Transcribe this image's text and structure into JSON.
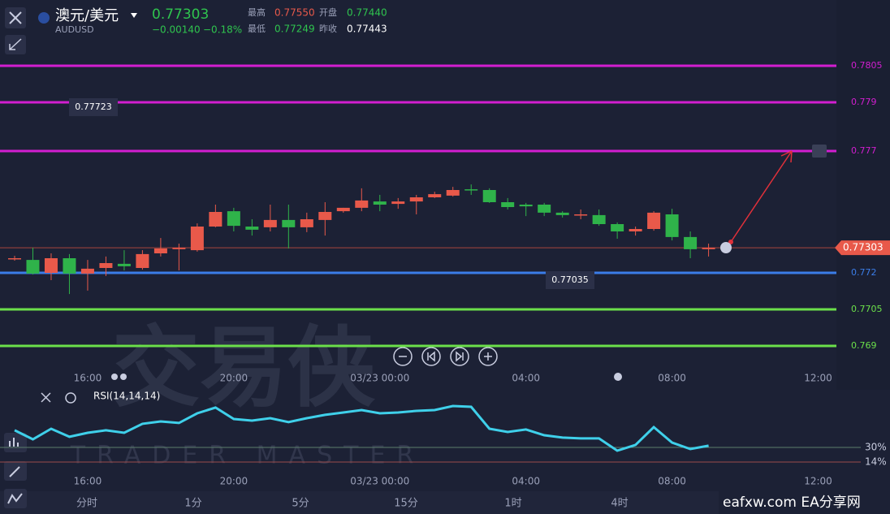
{
  "header": {
    "symbol_name": "澳元/美元",
    "symbol_code": "AUDUSD",
    "price": 0.77303,
    "change": -0.0014,
    "change_label": "−0.00140",
    "change_pct": "−0.18%",
    "stats": [
      {
        "label": "最高",
        "value": 0.7755,
        "value_label": "0.77550"
      },
      {
        "label": "开盘",
        "value": 0.7744,
        "value_label": "0.77440"
      },
      {
        "label": "最低",
        "value": 0.77249
      },
      {
        "label": "昨收",
        "value": 0.77443
      }
    ]
  },
  "chart_data": [
    {
      "type": "candlestick",
      "open": [
        0.7726,
        0.77253,
        0.772,
        0.7726,
        0.77197,
        0.7722,
        0.77237,
        0.7722,
        0.7728,
        0.77297,
        0.77293,
        0.7739,
        0.77453,
        0.7739,
        0.77387,
        0.77417,
        0.77387,
        0.77417,
        0.77453,
        0.77467,
        0.77493,
        0.77483,
        0.77493,
        0.7751,
        0.77517,
        0.77543,
        0.7754,
        0.7749,
        0.7748,
        0.7748,
        0.77447,
        0.77437,
        0.77437,
        0.774,
        0.7737,
        0.7738,
        0.7744,
        0.77347,
        0.77297
      ],
      "high": [
        0.7727,
        0.77303,
        0.7728,
        0.77277,
        0.77253,
        0.77267,
        0.77293,
        0.77293,
        0.77343,
        0.7732,
        0.77403,
        0.7748,
        0.77467,
        0.7742,
        0.7748,
        0.7748,
        0.77447,
        0.7749,
        0.77467,
        0.77547,
        0.7752,
        0.77507,
        0.7752,
        0.77533,
        0.77553,
        0.77563,
        0.77547,
        0.77507,
        0.77487,
        0.77487,
        0.77453,
        0.7746,
        0.7746,
        0.77407,
        0.7739,
        0.77453,
        0.77463,
        0.7737,
        0.7732
      ],
      "low": [
        0.7725,
        0.77193,
        0.7717,
        0.77113,
        0.77127,
        0.77187,
        0.7721,
        0.77213,
        0.77267,
        0.7721,
        0.77287,
        0.77387,
        0.7737,
        0.77353,
        0.7737,
        0.773,
        0.77367,
        0.77353,
        0.77447,
        0.77453,
        0.77453,
        0.77463,
        0.7744,
        0.77507,
        0.77513,
        0.7752,
        0.77487,
        0.7746,
        0.77433,
        0.77433,
        0.77427,
        0.7742,
        0.77393,
        0.7734,
        0.77353,
        0.77373,
        0.77333,
        0.7726,
        0.77267
      ],
      "close": [
        0.7726,
        0.77197,
        0.7726,
        0.77197,
        0.77217,
        0.7724,
        0.77227,
        0.77277,
        0.773,
        0.77303,
        0.7739,
        0.7745,
        0.77393,
        0.77377,
        0.77417,
        0.77387,
        0.7742,
        0.7745,
        0.77467,
        0.77497,
        0.7748,
        0.77493,
        0.7751,
        0.77523,
        0.7754,
        0.7754,
        0.7749,
        0.7747,
        0.77473,
        0.77447,
        0.77437,
        0.7744,
        0.774,
        0.7737,
        0.7738,
        0.77447,
        0.77347,
        0.77297,
        0.77303
      ],
      "up_color": "#e8594a",
      "down_color": "#2fb34a",
      "xlim": [
        -0.8,
        45
      ],
      "xticks": [
        {
          "value": 4,
          "label": "16:00"
        },
        {
          "value": 12,
          "label": "20:00"
        },
        {
          "value": 20,
          "label": "03/23 00:00"
        },
        {
          "value": 28,
          "label": "04:00"
        },
        {
          "value": 36,
          "label": "08:00"
        },
        {
          "value": 44,
          "label": "12:00"
        }
      ],
      "ylim": [
        0.7672,
        0.7832
      ],
      "levels": [
        {
          "value": 0.7805,
          "color": "#d21ed0"
        },
        {
          "value": 0.779,
          "color": "#d21ed0"
        },
        {
          "value": 0.777,
          "color": "#d21ed0"
        },
        {
          "value": 0.772,
          "color": "#3b7de8"
        },
        {
          "value": 0.7705,
          "color": "#6be04a"
        },
        {
          "value": 0.769,
          "color": "#6be04a"
        }
      ],
      "last": 0.77303,
      "price_labels": [
        0.77723,
        0.77035
      ]
    },
    {
      "type": "line",
      "title": "RSI(14,14,14)",
      "color": "#3fd0ea",
      "values": [
        48.7,
        38.9,
        50.4,
        41.6,
        46,
        48.7,
        46,
        55.8,
        58.4,
        56.7,
        67.3,
        73.6,
        61.1,
        59.3,
        62,
        57.6,
        62,
        65.6,
        68.2,
        70.9,
        67.3,
        68.2,
        70,
        70.9,
        75.3,
        74.4,
        50.4,
        46.9,
        49.6,
        43.3,
        40.7,
        39.8,
        39.8,
        26.4,
        32.7,
        52.2,
        35.3,
        28.2,
        31.8
      ],
      "ylim": [
        -13.6,
        93.1
      ],
      "yticks": [
        {
          "value": 30,
          "label": "30%"
        },
        {
          "value": 14,
          "label": "14%"
        }
      ]
    }
  ],
  "tabs": [
    "分时",
    "1分",
    "5分",
    "15分",
    "1时",
    "4时"
  ],
  "watermark": {
    "title": "交易侠",
    "subtitle": "TRADER MASTER",
    "site": "eafxw.com  EA分享网"
  }
}
